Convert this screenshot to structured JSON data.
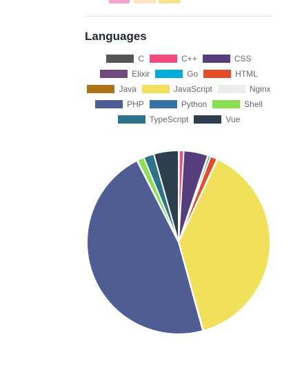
{
  "top_strip": {
    "chips": [
      {
        "name": "pink-chip",
        "color": "#f5a3cf"
      },
      {
        "name": "peach-chip",
        "color": "#fde3c0"
      },
      {
        "name": "yellow-chip",
        "color": "#f9e38d"
      }
    ]
  },
  "section": {
    "title": "Languages"
  },
  "chart_data": {
    "type": "pie",
    "title": "",
    "legend_position": "top",
    "categories": [
      "C",
      "C++",
      "CSS",
      "Elixir",
      "Go",
      "HTML",
      "Java",
      "JavaScript",
      "Nginx",
      "PHP",
      "Python",
      "Shell",
      "TypeScript",
      "Vue"
    ],
    "colors": [
      "#555555",
      "#f34b7d",
      "#563d7c",
      "#6e4a7e",
      "#00add8",
      "#e34c26",
      "#b07219",
      "#f1e05a",
      "#ededed",
      "#4f5d95",
      "#3572a5",
      "#89e051",
      "#2b7489",
      "#2c3e50"
    ],
    "values": [
      0.1,
      0.8,
      4.2,
      0.1,
      0.4,
      1.2,
      0.1,
      38.0,
      0.1,
      46.0,
      0.1,
      1.2,
      1.8,
      4.3
    ]
  }
}
